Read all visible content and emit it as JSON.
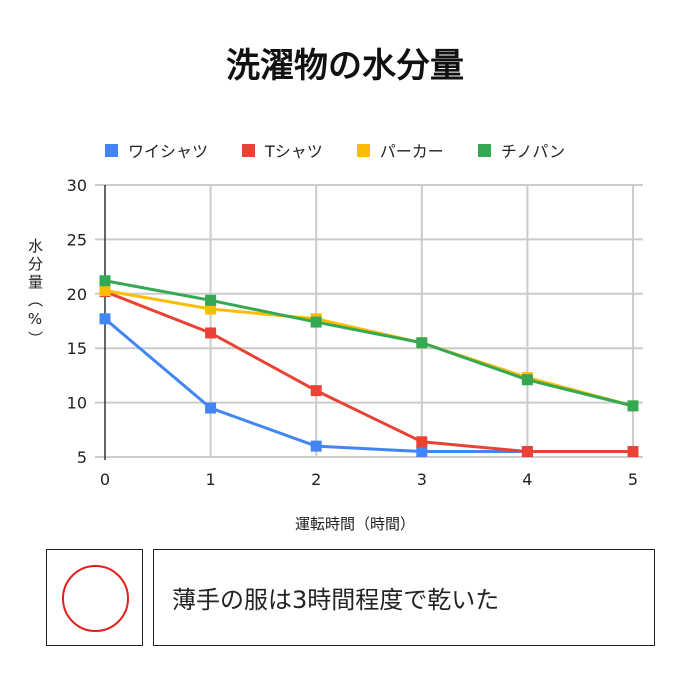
{
  "chart_data": {
    "type": "line",
    "title": "洗濯物の水分量",
    "xlabel": "運転時間（時間）",
    "ylabel": "水分量（%）",
    "ylabel_chars": [
      "水",
      "分",
      "量",
      "（",
      "%",
      "）"
    ],
    "x": [
      0,
      1,
      2,
      3,
      4,
      5
    ],
    "ylim": [
      5,
      30
    ],
    "yticks": [
      5,
      10,
      15,
      20,
      25,
      30
    ],
    "grid": true,
    "legend": "top",
    "series": [
      {
        "name": "ワイシャツ",
        "color": "#4285f4",
        "values": [
          17.7,
          9.5,
          6.0,
          5.5,
          5.5,
          5.5
        ]
      },
      {
        "name": "Tシャツ",
        "color": "#ea4335",
        "values": [
          20.2,
          16.4,
          11.1,
          6.4,
          5.5,
          5.5
        ]
      },
      {
        "name": "パーカー",
        "color": "#fbbc04",
        "values": [
          20.3,
          18.6,
          17.7,
          15.5,
          12.3,
          9.7
        ]
      },
      {
        "name": "チノパン",
        "color": "#34a853",
        "values": [
          21.2,
          19.4,
          17.4,
          15.5,
          12.1,
          9.7
        ]
      }
    ]
  },
  "result": {
    "symbol": "circle-mark",
    "color": "#e0201b",
    "text": "薄手の服は3時間程度で乾いた"
  }
}
